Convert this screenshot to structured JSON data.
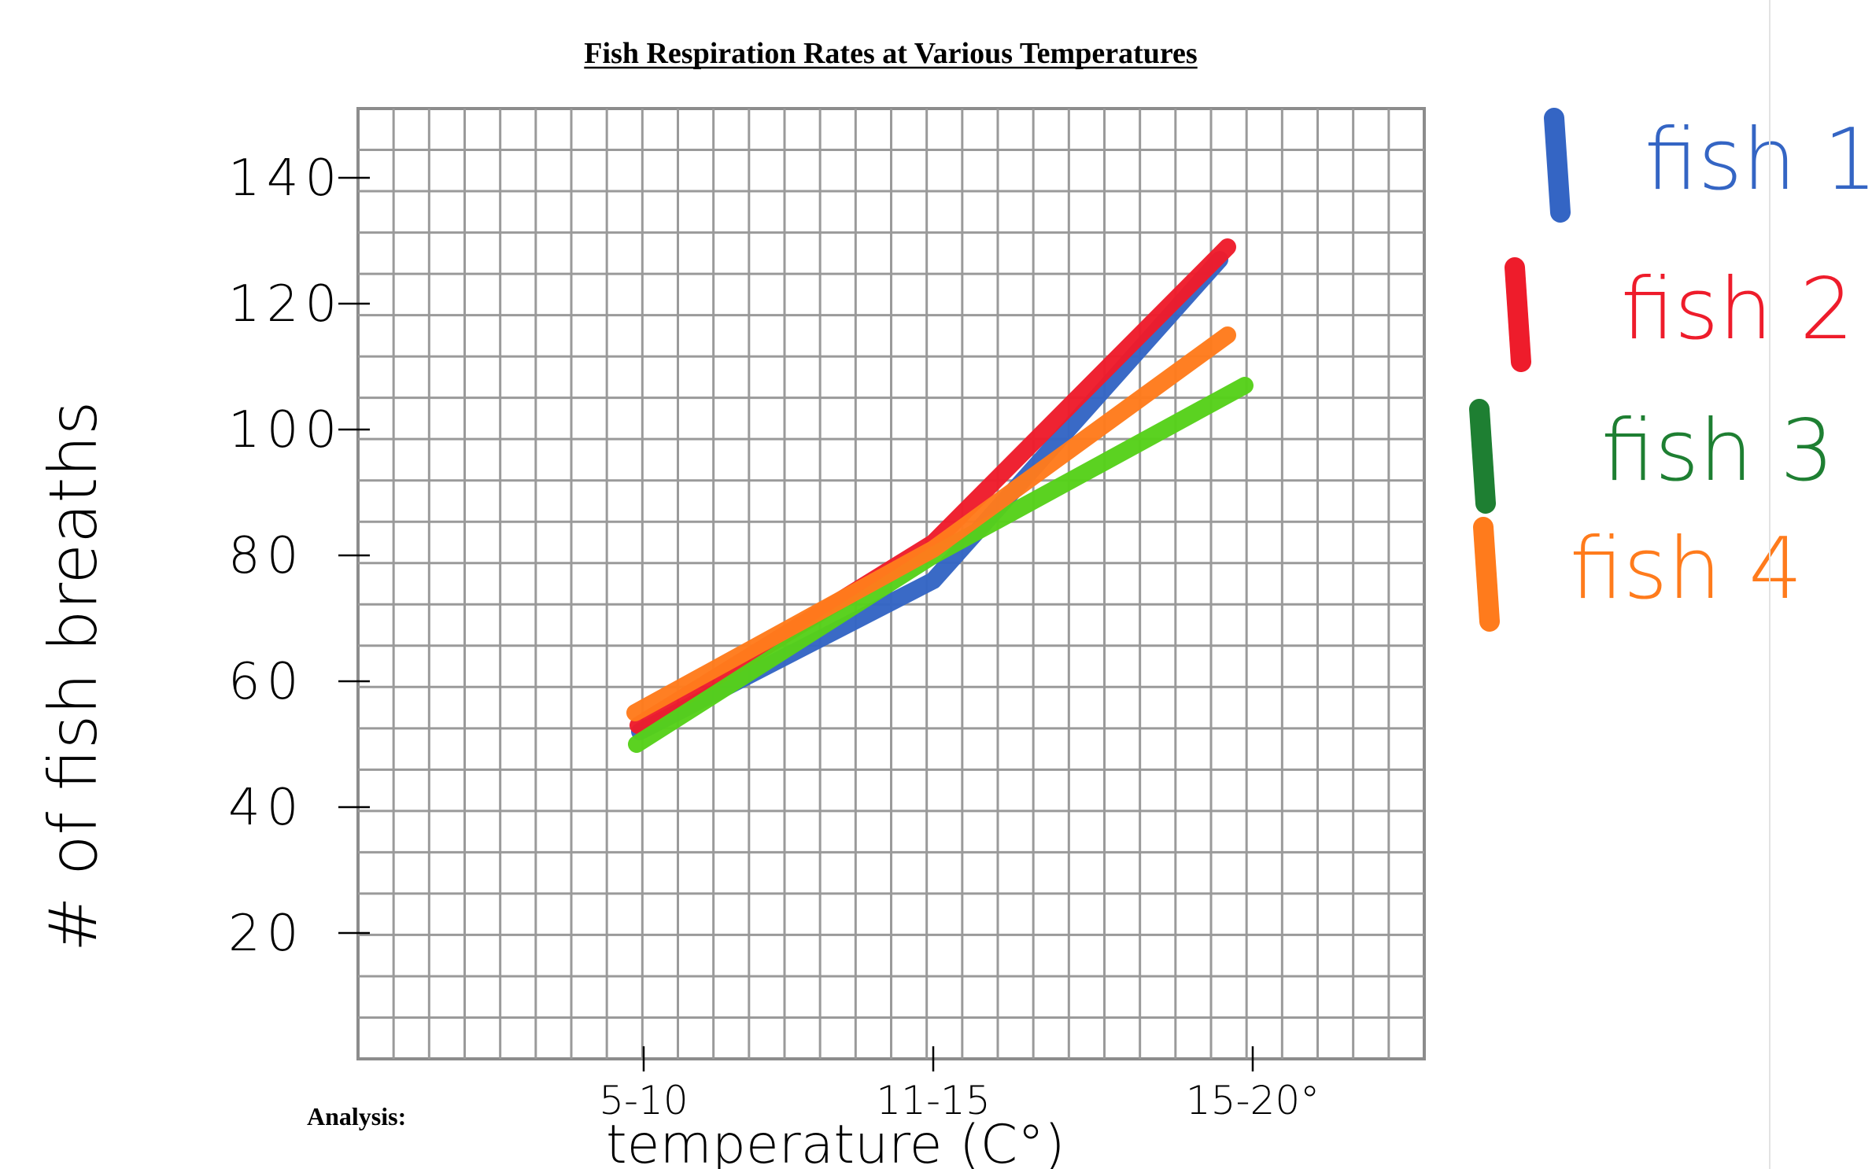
{
  "chart_data": {
    "type": "line",
    "title": "Fish Respiration Rates at Various Temperatures",
    "xlabel": "temperature (C°)",
    "ylabel": "# of fish breaths",
    "categories": [
      "5-10",
      "11-15",
      "15-20°"
    ],
    "y_ticks": [
      "20",
      "40",
      "60",
      "80",
      "100",
      "120",
      "140"
    ],
    "y_tick_values": [
      20,
      40,
      60,
      80,
      100,
      120,
      140
    ],
    "ylim": [
      0,
      151
    ],
    "grid": true,
    "legend_placement": "right",
    "series": [
      {
        "name": "fish 1",
        "color": "#3465c4",
        "values": [
          52,
          76,
          127
        ]
      },
      {
        "name": "fish 2",
        "color": "#ee1c2b",
        "values": [
          53,
          82,
          129
        ]
      },
      {
        "name": "fish 3",
        "color": "#1e7f32",
        "line_color": "#56d11a",
        "values": [
          50,
          80,
          107
        ]
      },
      {
        "name": "fish 4",
        "color": "#ff7b1c",
        "values": [
          55,
          81,
          115
        ]
      }
    ]
  },
  "analysis_label": "Analysis:"
}
